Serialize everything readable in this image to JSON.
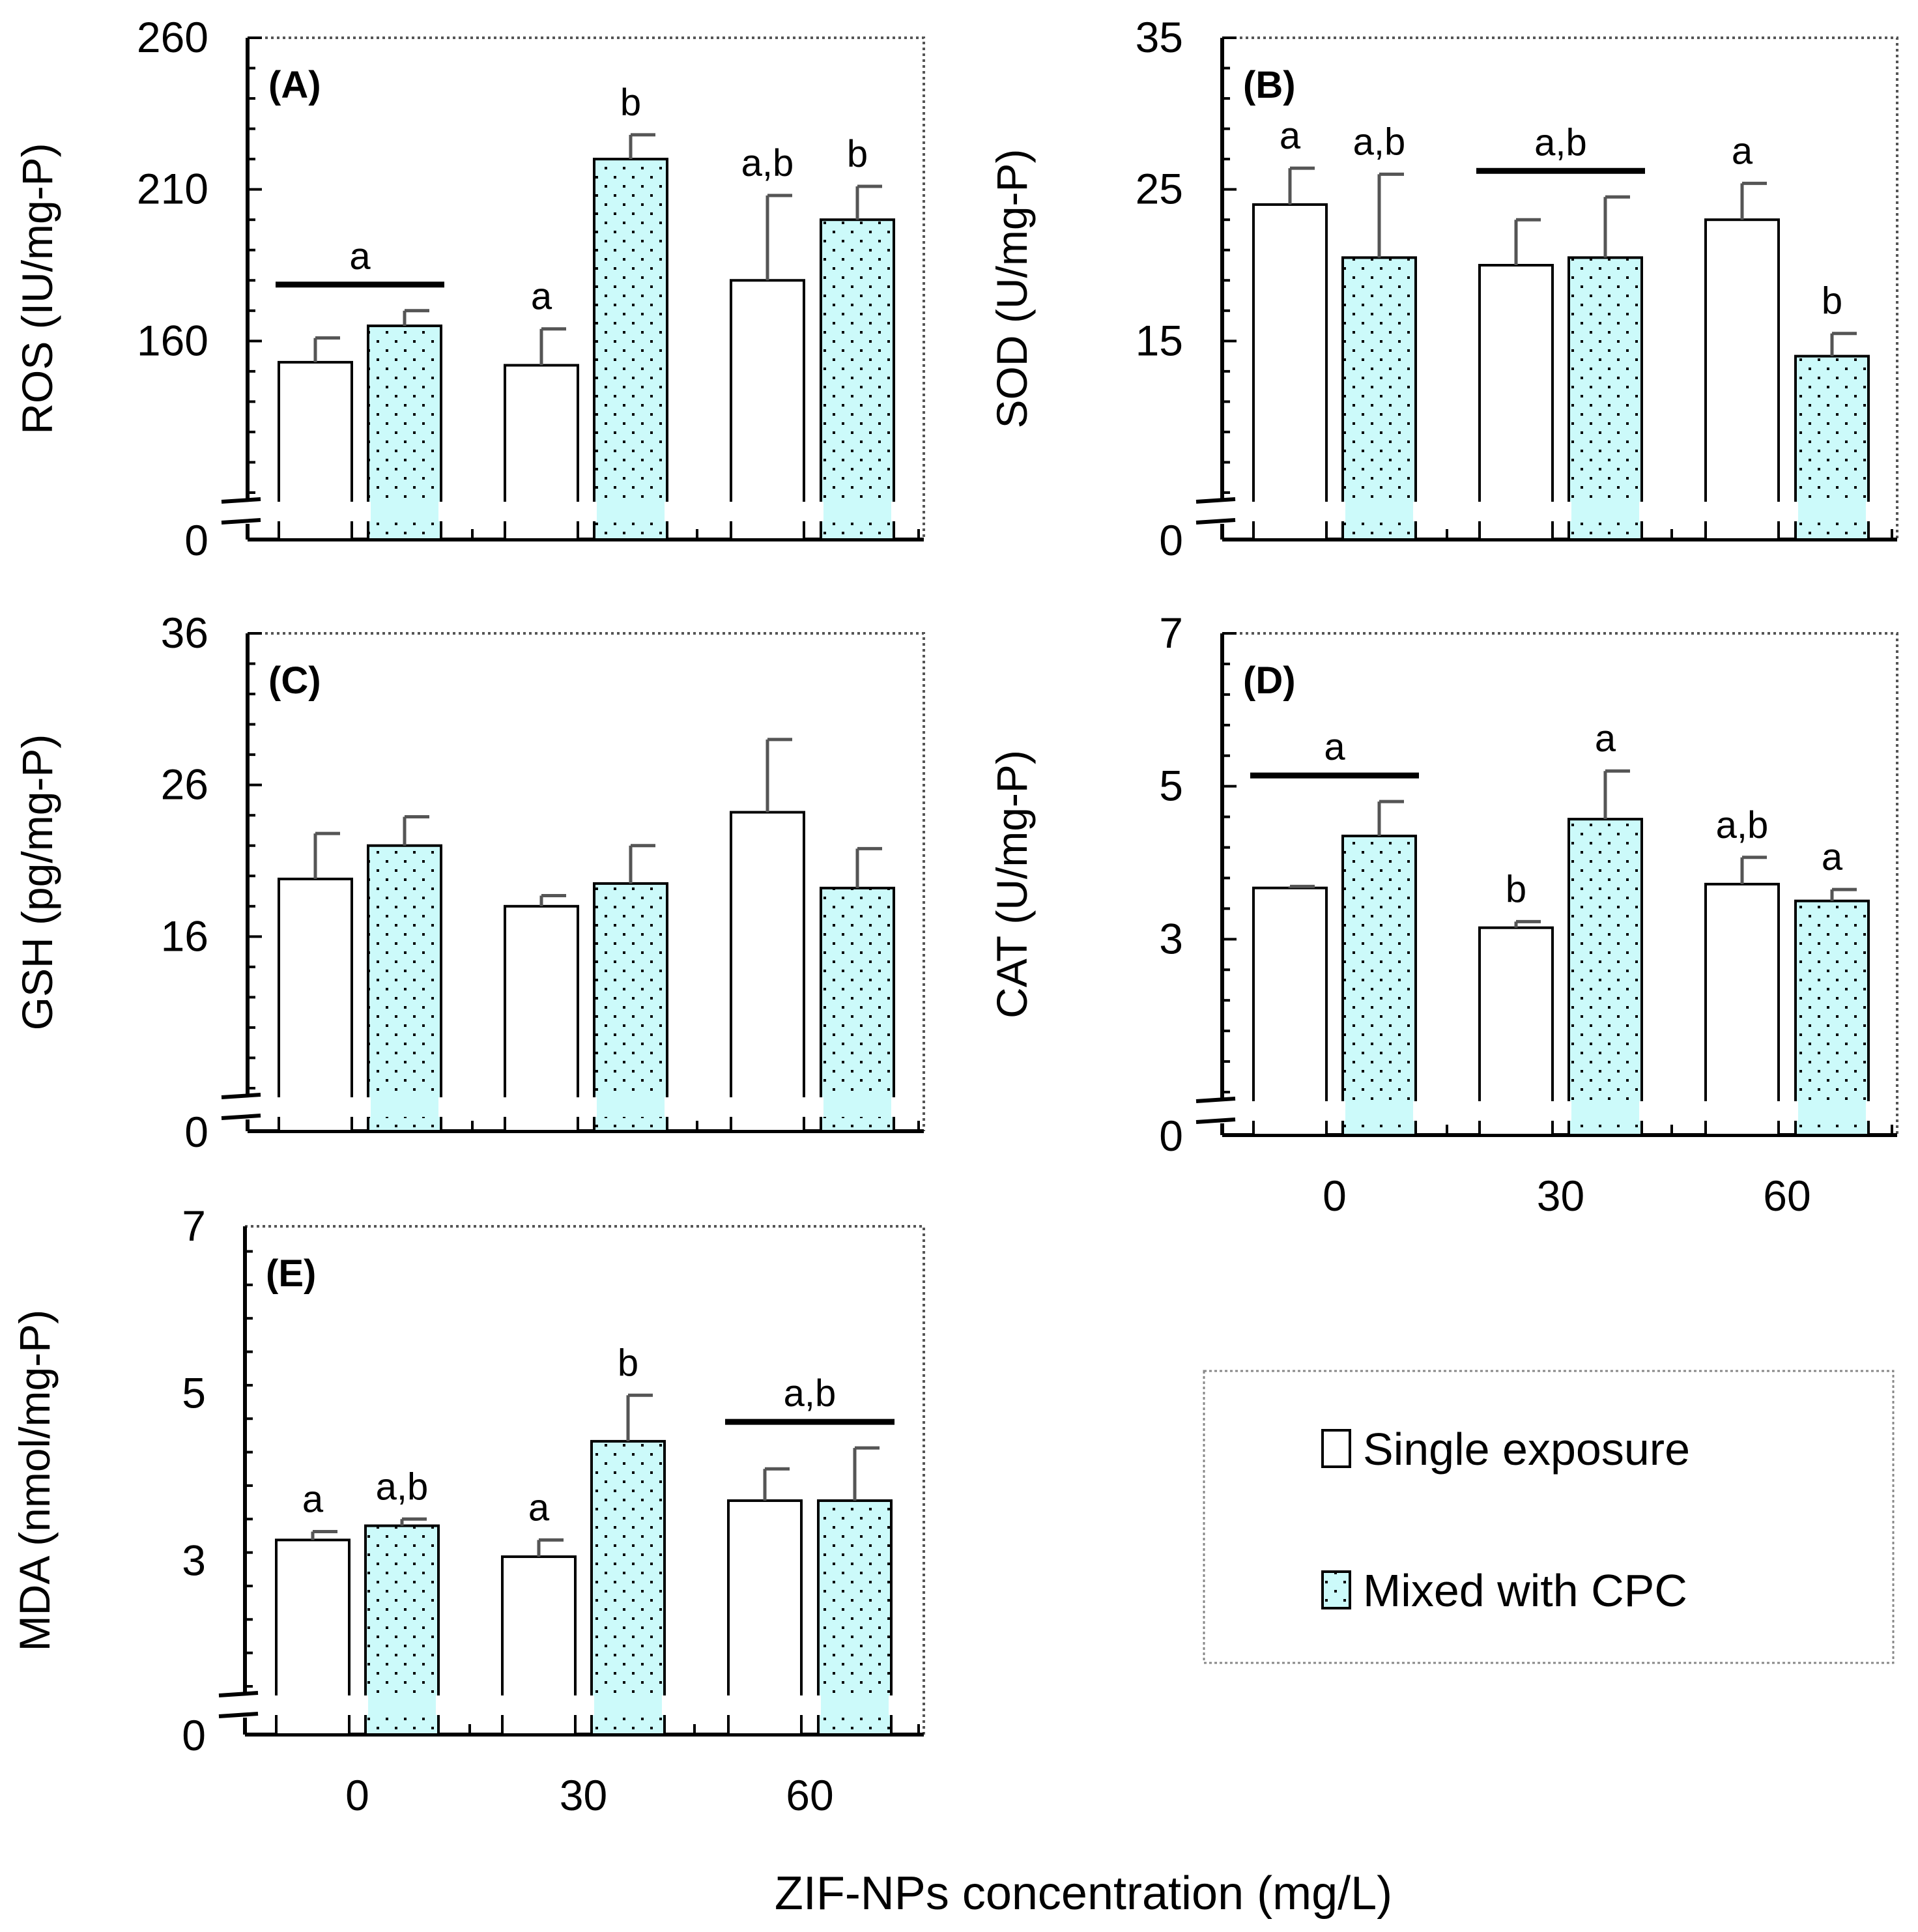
{
  "figure": {
    "xlabel": "ZIF-NPs concentration  (mg/L)",
    "legend": {
      "items": [
        {
          "label": "Single exposure",
          "fill": "#ffffff"
        },
        {
          "label": "Mixed with CPC",
          "fill": "#ccfafa"
        }
      ]
    },
    "colors": {
      "single": "#ffffff",
      "mixed": "#ccfafa",
      "error_bar": "#555555",
      "axis": "#000000"
    }
  },
  "chart_data": [
    {
      "type": "bar",
      "panel": "(A)",
      "ylabel": "ROS (IU/mg-P)",
      "categories": [
        "0",
        "30",
        "60"
      ],
      "ylim": [
        110,
        260
      ],
      "yticks": [
        160,
        210,
        260
      ],
      "ytick_labels": [
        "160",
        "210",
        "260"
      ],
      "baseline_label": "0",
      "series": [
        {
          "name": "Single exposure",
          "values": [
            153,
            152,
            180
          ],
          "errors": [
            8,
            12,
            28
          ]
        },
        {
          "name": "Mixed with CPC",
          "values": [
            165,
            220,
            200
          ],
          "errors": [
            5,
            8,
            11
          ]
        }
      ],
      "annotations": [
        {
          "text": "a",
          "span": [
            0,
            1
          ]
        },
        {
          "text": "a",
          "cat": 1,
          "bar": 0
        },
        {
          "text": "b",
          "cat": 1,
          "bar": 1
        },
        {
          "text": "a,b",
          "cat": 2,
          "bar": 0
        },
        {
          "text": "b",
          "cat": 2,
          "bar": 1
        }
      ]
    },
    {
      "type": "bar",
      "panel": "(B)",
      "ylabel": "SOD (U/mg-P)",
      "categories": [
        "0",
        "30",
        "60"
      ],
      "ylim": [
        5,
        35
      ],
      "yticks": [
        15,
        25,
        35
      ],
      "ytick_labels": [
        "15",
        "25",
        "35"
      ],
      "baseline_label": "0",
      "series": [
        {
          "name": "Single exposure",
          "values": [
            24.0,
            20.0,
            23.0
          ],
          "errors": [
            2.4,
            3.0,
            2.4
          ]
        },
        {
          "name": "Mixed with CPC",
          "values": [
            20.5,
            20.5,
            14.0
          ],
          "errors": [
            5.5,
            4.0,
            1.5
          ]
        }
      ],
      "annotations": [
        {
          "text": "a",
          "cat": 0,
          "bar": 0
        },
        {
          "text": "a,b",
          "cat": 0,
          "bar": 1
        },
        {
          "text": "a,b",
          "span": [
            2,
            3
          ]
        },
        {
          "text": "a",
          "cat": 2,
          "bar": 0
        },
        {
          "text": "b",
          "cat": 2,
          "bar": 1
        }
      ]
    },
    {
      "type": "bar",
      "panel": "(C)",
      "ylabel": "GSH (pg/mg-P)",
      "categories": [
        "0",
        "30",
        "60"
      ],
      "ylim": [
        6,
        36
      ],
      "yticks": [
        16,
        26,
        36
      ],
      "ytick_labels": [
        "16",
        "26",
        "36"
      ],
      "baseline_label": "0",
      "series": [
        {
          "name": "Single exposure",
          "values": [
            19.8,
            18.0,
            24.2
          ],
          "errors": [
            3.0,
            0.7,
            4.8
          ]
        },
        {
          "name": "Mixed with CPC",
          "values": [
            22.0,
            19.5,
            19.2
          ],
          "errors": [
            1.9,
            2.5,
            2.6
          ]
        }
      ],
      "annotations": []
    },
    {
      "type": "bar",
      "panel": "(D)",
      "ylabel": "CAT (U/mg-P)",
      "categories": [
        "0",
        "30",
        "60"
      ],
      "ylim": [
        1,
        7
      ],
      "yticks": [
        3,
        5,
        7
      ],
      "ytick_labels": [
        "3",
        "5",
        "7"
      ],
      "baseline_label": "0",
      "show_xticklabels": true,
      "series": [
        {
          "name": "Single exposure",
          "values": [
            3.67,
            3.15,
            3.72
          ],
          "errors": [
            0.02,
            0.08,
            0.35
          ]
        },
        {
          "name": "Mixed with CPC",
          "values": [
            4.35,
            4.57,
            3.5
          ],
          "errors": [
            0.45,
            0.63,
            0.15
          ]
        }
      ],
      "annotations": [
        {
          "text": "a",
          "span": [
            0,
            1
          ]
        },
        {
          "text": "b",
          "cat": 1,
          "bar": 0
        },
        {
          "text": "a",
          "cat": 1,
          "bar": 1
        },
        {
          "text": "a,b",
          "cat": 2,
          "bar": 0
        },
        {
          "text": "a",
          "cat": 2,
          "bar": 1
        }
      ]
    },
    {
      "type": "bar",
      "panel": "(E)",
      "ylabel": "MDA (nmol/mg-P)",
      "categories": [
        "0",
        "30",
        "60"
      ],
      "ylim": [
        1.5,
        7
      ],
      "yticks": [
        3,
        5,
        7
      ],
      "ytick_labels": [
        "3",
        "5",
        "7"
      ],
      "baseline_label": "0",
      "show_xticklabels": true,
      "series": [
        {
          "name": "Single exposure",
          "values": [
            3.25,
            3.05,
            3.72
          ],
          "errors": [
            0.1,
            0.2,
            0.38
          ]
        },
        {
          "name": "Mixed with CPC",
          "values": [
            3.42,
            4.43,
            3.72
          ],
          "errors": [
            0.08,
            0.55,
            0.63
          ]
        }
      ],
      "annotations": [
        {
          "text": "a",
          "cat": 0,
          "bar": 0
        },
        {
          "text": "a,b",
          "cat": 0,
          "bar": 1
        },
        {
          "text": "a",
          "cat": 1,
          "bar": 0
        },
        {
          "text": "b",
          "cat": 1,
          "bar": 1
        },
        {
          "text": "a,b",
          "span": [
            4,
            5
          ]
        }
      ]
    }
  ]
}
